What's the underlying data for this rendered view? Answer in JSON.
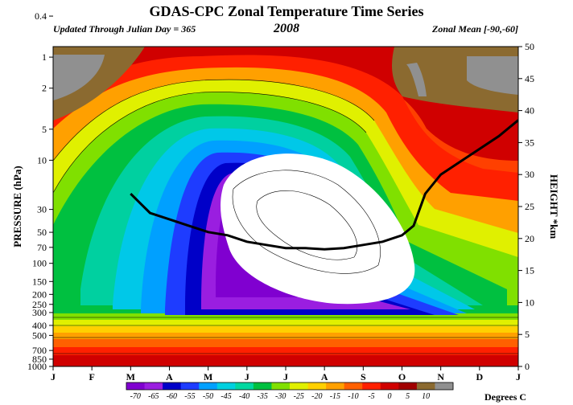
{
  "chart_data": {
    "type": "heatmap",
    "title": "GDAS-CPC Zonal Temperature Time Series",
    "subtitle_left": "Updated Through Julian Day = 365",
    "subtitle_center": "2008",
    "subtitle_right": "Zonal Mean [-90,-60]",
    "ylabel_left": "PRESSURE (hPa)",
    "ylabel_right": "HEIGHT *km",
    "colorbar_label": "Degrees C",
    "x_ticks": [
      "J",
      "F",
      "M",
      "A",
      "M",
      "J",
      "J",
      "A",
      "S",
      "O",
      "N",
      "D",
      "J"
    ],
    "pressure_ticks": [
      "0.4",
      "1",
      "2",
      "5",
      "10",
      "30",
      "50",
      "70",
      "100",
      "150",
      "200",
      "250",
      "300",
      "400",
      "500",
      "700",
      "850",
      "1000"
    ],
    "height_ticks": [
      "50",
      "45",
      "40",
      "35",
      "30",
      "25",
      "20",
      "15",
      "10",
      "5",
      "0"
    ],
    "colorbar_levels": [
      "-70",
      "-65",
      "-60",
      "-55",
      "-50",
      "-45",
      "-40",
      "-35",
      "-30",
      "-25",
      "-20",
      "-15",
      "-10",
      "-5",
      "0",
      "5",
      "10"
    ],
    "colorbar_colors": [
      "#8000d0",
      "#9a1ee0",
      "#0000c8",
      "#1e3cff",
      "#00a0ff",
      "#00d0e0",
      "#00d8a0",
      "#00c040",
      "#80e000",
      "#e0f000",
      "#ffd000",
      "#ffa000",
      "#ff6000",
      "#ff2000",
      "#d00000",
      "#a00000",
      "#8b6a30",
      "#909090"
    ],
    "tropopause_height_km": {
      "x_month": [
        2.0,
        2.5,
        3.0,
        3.5,
        4.0,
        4.5,
        5.0,
        5.5,
        6.0,
        6.5,
        7.0,
        7.5,
        8.0,
        8.5,
        9.0,
        9.3,
        9.6,
        10.0,
        10.5,
        11.0,
        11.5,
        12.0
      ],
      "height_km": [
        27,
        24,
        23,
        22,
        21,
        20.5,
        19.5,
        19,
        18.5,
        18.5,
        18.3,
        18.5,
        19,
        19.5,
        20.5,
        22,
        27,
        30,
        32,
        34,
        36,
        38.5
      ]
    }
  }
}
